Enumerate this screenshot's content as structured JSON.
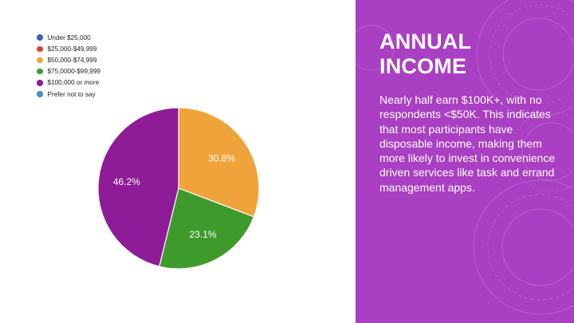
{
  "slide": {
    "title_line1": "ANNUAL",
    "title_line2": "INCOME",
    "body": "Nearly half earn $100K+, with no respondents <$50K. This indicates that most participants have disposable income, making them more likely to invest in convenience driven services like task and errand management apps."
  },
  "colors": {
    "panel": "#a93fc2"
  },
  "chart_data": {
    "type": "pie",
    "legend_position": "top-left",
    "categories": [
      "Under $25,000",
      "$25,000-$49,999",
      "$50,000-$74,999",
      "$75,0000-$99,999",
      "$100,000 or more",
      "Prefer not to say"
    ],
    "values": [
      0,
      0,
      30.8,
      23.1,
      46.2,
      0
    ],
    "labels": [
      "",
      "",
      "30.8%",
      "23.1%",
      "46.2%",
      ""
    ],
    "colors": [
      "#3f60b8",
      "#d6432d",
      "#f0a33a",
      "#3f9a2c",
      "#8e1b97",
      "#3e93c2"
    ]
  }
}
